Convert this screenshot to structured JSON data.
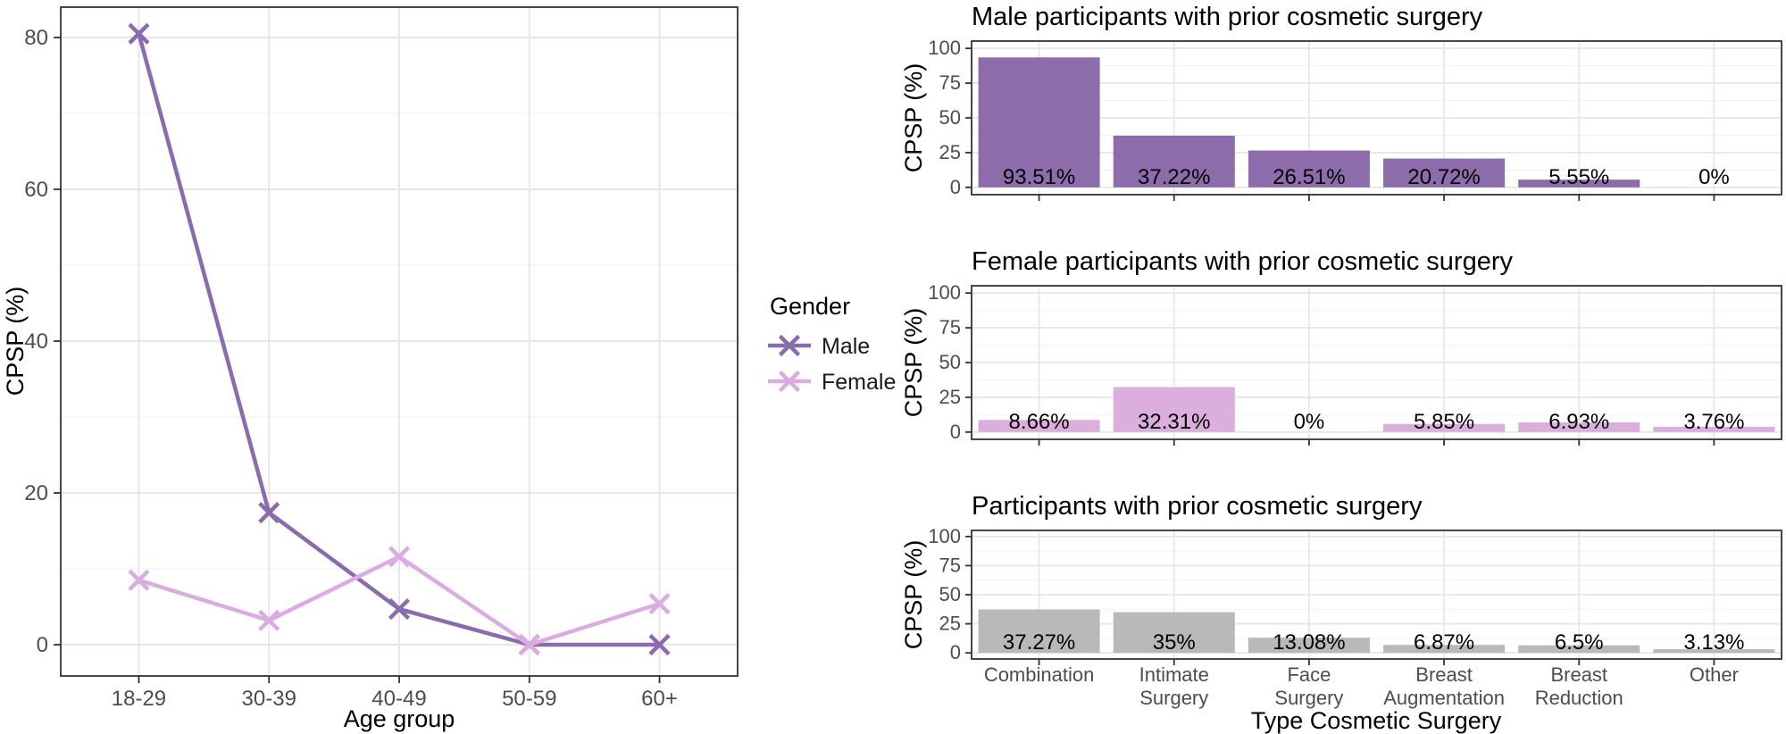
{
  "figure": {
    "background": "#ffffff",
    "panel_border_color": "#333333",
    "grid_major_color": "#e7e7e7",
    "grid_minor_color": "#f2f2f2",
    "tick_color": "#333333",
    "tick_label_color": "#4d4d4d"
  },
  "chart_data": [
    {
      "type": "line",
      "title": "",
      "xlabel": "Age group",
      "ylabel": "CPSP (%)",
      "categories": [
        "18-29",
        "30-39",
        "40-49",
        "50-59",
        "60+"
      ],
      "yticks": [
        0,
        20,
        40,
        60,
        80
      ],
      "yticks_minor": [
        10,
        30,
        50,
        70
      ],
      "ylim": [
        0,
        84
      ],
      "grid": true,
      "marker": "x",
      "legend": {
        "title": "Gender",
        "position": "right",
        "items": [
          {
            "label": "Male",
            "color": "#8a6cae"
          },
          {
            "label": "Female",
            "color": "#dbace1"
          }
        ]
      },
      "series": [
        {
          "name": "Male",
          "color": "#8a6cae",
          "values": [
            80.5,
            17.4,
            4.7,
            0,
            0
          ]
        },
        {
          "name": "Female",
          "color": "#dbace1",
          "values": [
            8.5,
            3.2,
            11.6,
            0,
            5.4
          ]
        }
      ]
    },
    {
      "type": "bar",
      "title": "Male participants with prior cosmetic surgery",
      "ylabel": "CPSP (%)",
      "xlabel": "",
      "color": "#8d6cab",
      "categories": [
        "Combination",
        "Intimate Surgery",
        "Face Surgery",
        "Breast Augmentation",
        "Breast Reduction",
        "Other"
      ],
      "values": [
        93.51,
        37.22,
        26.51,
        20.72,
        5.55,
        0
      ],
      "labels": [
        "93.51%",
        "37.22%",
        "26.51%",
        "20.72%",
        "5.55%",
        "0%"
      ],
      "yticks": [
        0,
        25,
        50,
        75,
        100
      ],
      "yticks_minor": [
        12.5,
        37.5,
        62.5,
        87.5
      ],
      "ylim": [
        0,
        100
      ],
      "show_x_labels": false
    },
    {
      "type": "bar",
      "title": "Female participants with prior cosmetic surgery",
      "ylabel": "CPSP (%)",
      "xlabel": "",
      "color": "#dcaede",
      "categories": [
        "Combination",
        "Intimate Surgery",
        "Face Surgery",
        "Breast Augmentation",
        "Breast Reduction",
        "Other"
      ],
      "values": [
        8.66,
        32.31,
        0,
        5.85,
        6.93,
        3.76
      ],
      "labels": [
        "8.66%",
        "32.31%",
        "0%",
        "5.85%",
        "6.93%",
        "3.76%"
      ],
      "yticks": [
        0,
        25,
        50,
        75,
        100
      ],
      "yticks_minor": [
        12.5,
        37.5,
        62.5,
        87.5
      ],
      "ylim": [
        0,
        100
      ],
      "show_x_labels": false
    },
    {
      "type": "bar",
      "title": "Participants with prior cosmetic surgery",
      "ylabel": "CPSP (%)",
      "xlabel": "Type Cosmetic Surgery",
      "color": "#b9b9b9",
      "categories": [
        "Combination",
        "Intimate\nSurgery",
        "Face\nSurgery",
        "Breast\nAugmentation",
        "Breast\nReduction",
        "Other"
      ],
      "values": [
        37.27,
        35,
        13.08,
        6.87,
        6.5,
        3.13
      ],
      "labels": [
        "37.27%",
        "35%",
        "13.08%",
        "6.87%",
        "6.5%",
        "3.13%"
      ],
      "yticks": [
        0,
        25,
        50,
        75,
        100
      ],
      "yticks_minor": [
        12.5,
        37.5,
        62.5,
        87.5
      ],
      "ylim": [
        0,
        100
      ],
      "show_x_labels": true
    }
  ]
}
